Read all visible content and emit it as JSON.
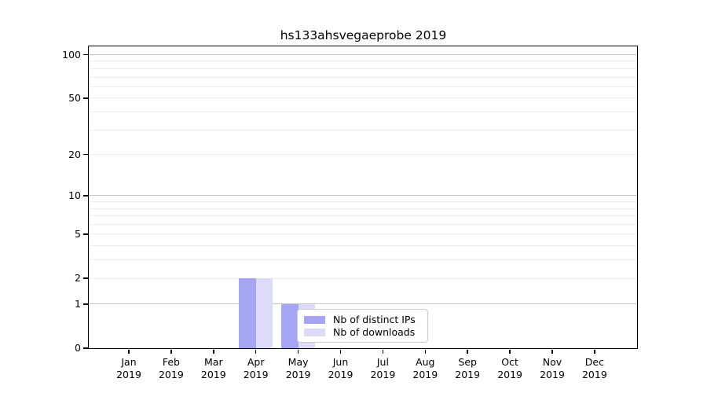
{
  "chart_data": {
    "type": "bar",
    "title": "hs133ahsvegaeprobe 2019",
    "categories": [
      "Jan",
      "Feb",
      "Mar",
      "Apr",
      "May",
      "Jun",
      "Jul",
      "Aug",
      "Sep",
      "Oct",
      "Nov",
      "Dec"
    ],
    "category_year": "2019",
    "series": [
      {
        "name": "Nb of distinct IPs",
        "color": "#a5a5f4",
        "values": [
          0,
          0,
          0,
          2,
          1,
          0,
          0,
          0,
          0,
          0,
          0,
          0
        ]
      },
      {
        "name": "Nb of downloads",
        "color": "#dcdcf9",
        "values": [
          0,
          0,
          0,
          2,
          1,
          0,
          0,
          0,
          0,
          0,
          0,
          0
        ]
      }
    ],
    "xlabel": "",
    "ylabel": "",
    "yscale": "log1p",
    "ylim": [
      0,
      114
    ],
    "yticks": [
      0,
      1,
      2,
      5,
      10,
      20,
      50,
      100
    ],
    "grid": {
      "enabled": true,
      "major_values": [
        1,
        10,
        100
      ],
      "minor_values": [
        2,
        3,
        4,
        5,
        6,
        7,
        8,
        9,
        20,
        30,
        40,
        50,
        60,
        70,
        80,
        90
      ],
      "major_color": "#c4c4c4",
      "minor_color": "#ededed"
    },
    "legend": {
      "position": "inside-bottom-center"
    },
    "axis_color": "#000000",
    "background_color": "#ffffff"
  }
}
